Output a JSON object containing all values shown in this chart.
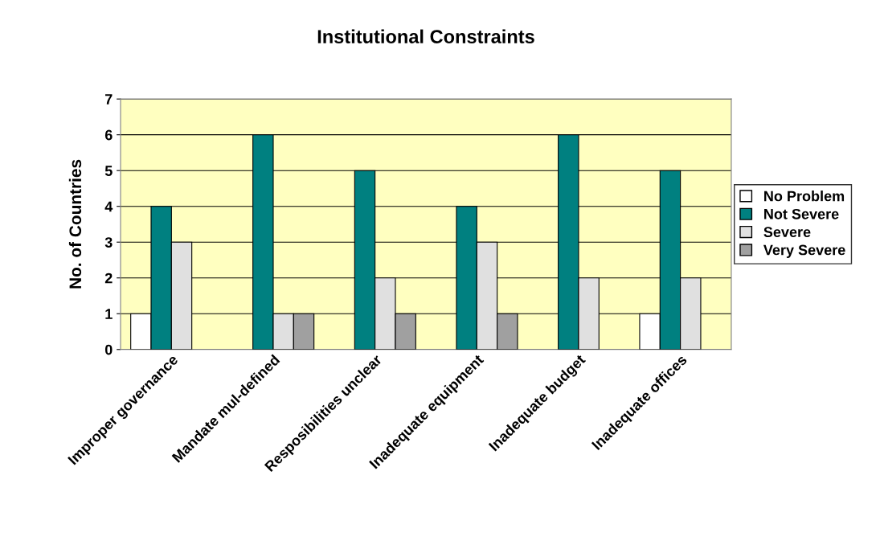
{
  "chart_data": {
    "type": "bar",
    "title": "Institutional Constraints",
    "ylabel": "No. of Countries",
    "categories": [
      "Improper governance",
      "Mandate mul-defined",
      "Resposibilities unclear",
      "Inadequate equipment",
      "Inadequate budget",
      "Inadequate offices"
    ],
    "series": [
      {
        "name": "No Problem",
        "color": "#ffffff",
        "values": [
          1,
          0,
          0,
          0,
          0,
          1
        ]
      },
      {
        "name": "Not Severe",
        "color": "#008080",
        "values": [
          4,
          6,
          5,
          4,
          6,
          5
        ]
      },
      {
        "name": "Severe",
        "color": "#e0e0e0",
        "values": [
          3,
          1,
          2,
          3,
          2,
          2
        ]
      },
      {
        "name": "Very Severe",
        "color": "#a0a0a0",
        "values": [
          0,
          1,
          1,
          1,
          0,
          0
        ]
      }
    ],
    "ylim": [
      0,
      7
    ],
    "yticks": [
      0,
      1,
      2,
      3,
      4,
      5,
      6,
      7
    ],
    "grid": "y",
    "legend": "right"
  }
}
